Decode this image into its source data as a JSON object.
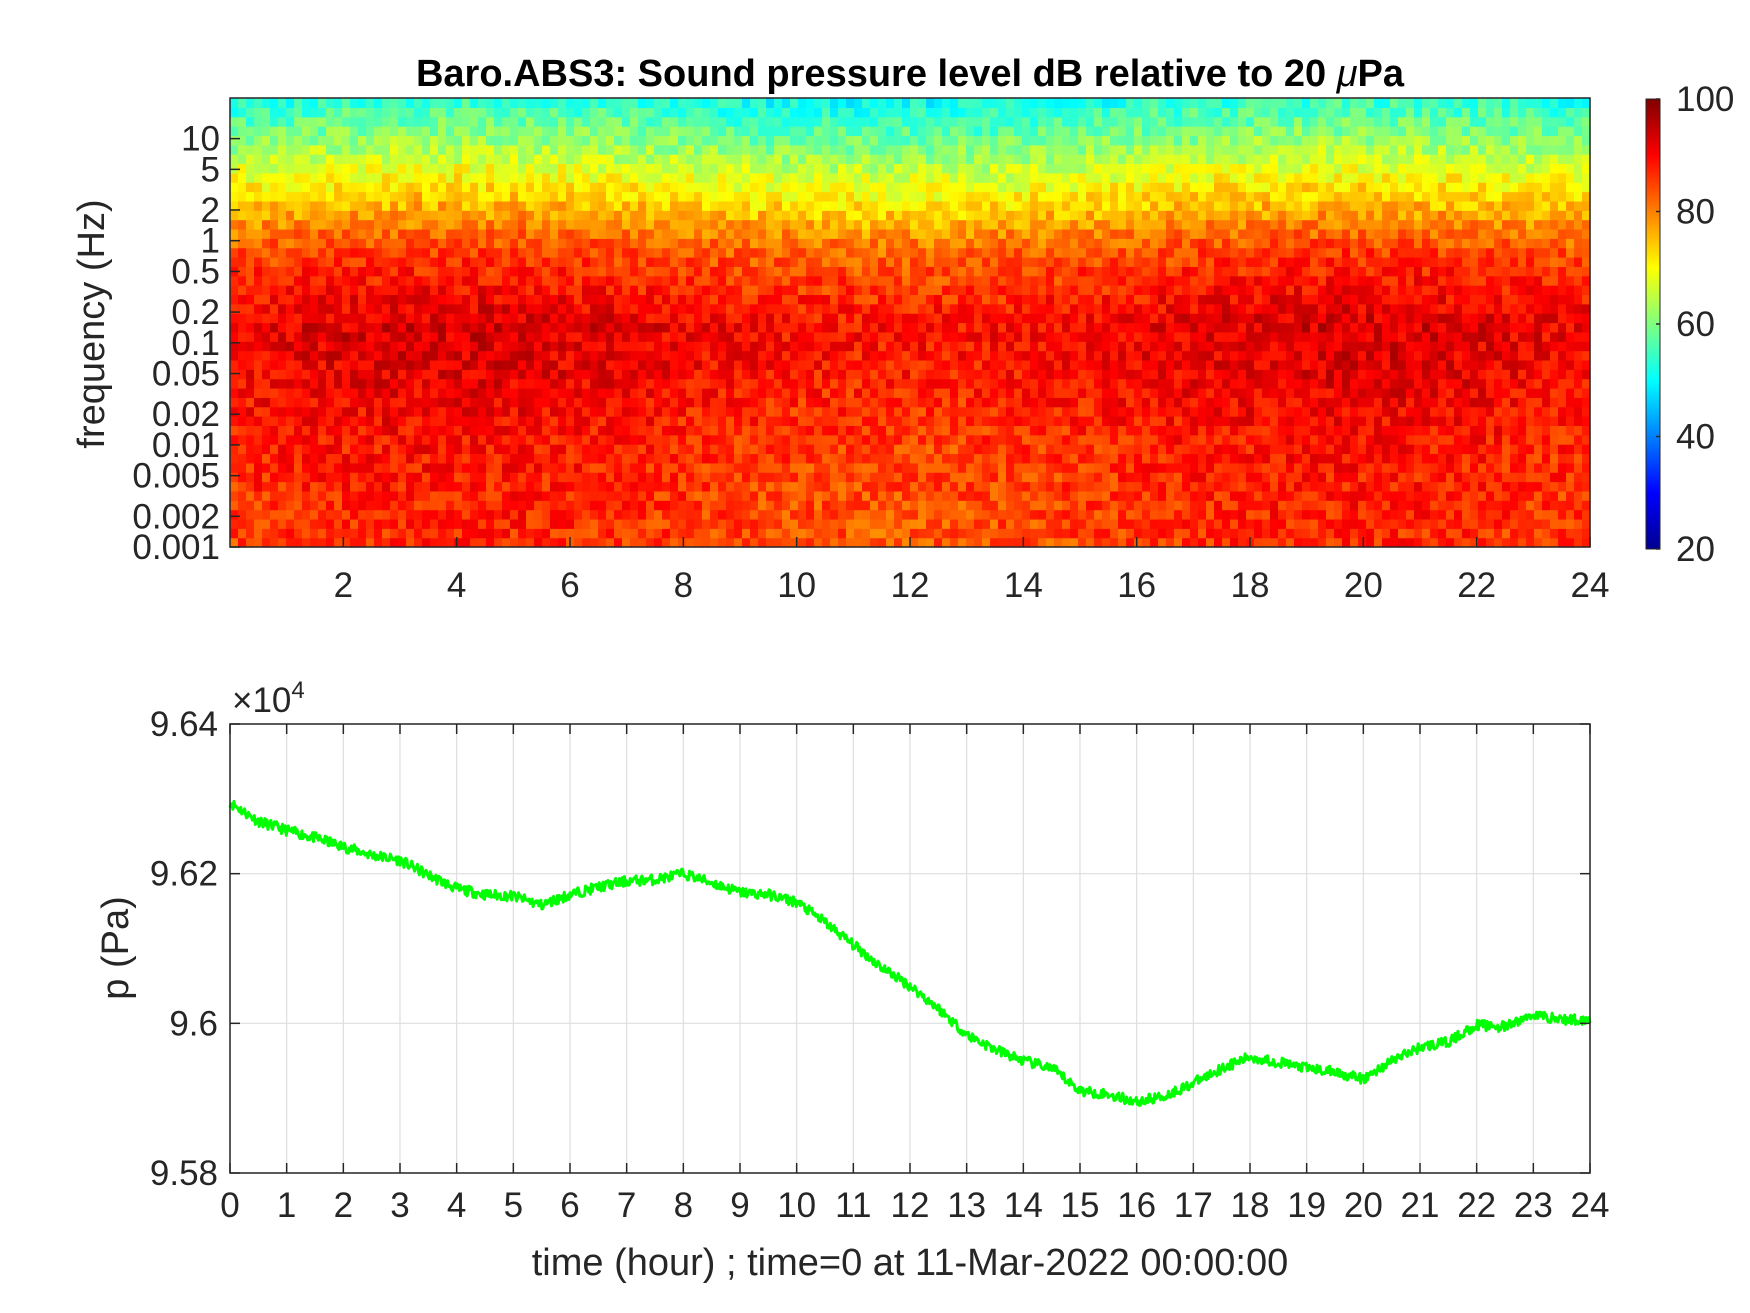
{
  "chart_data": [
    {
      "type": "heatmap",
      "title_main": "Baro.ABS3: Sound pressure level dB relative to 20 ",
      "title_mu": "μ",
      "title_end": "Pa",
      "ylabel": "frequency (Hz)",
      "xlabel": "",
      "x_range": [
        0,
        24
      ],
      "x_ticks": [
        2,
        4,
        6,
        8,
        10,
        12,
        14,
        16,
        18,
        20,
        22,
        24
      ],
      "x_tick_labels": [
        "2",
        "4",
        "6",
        "8",
        "10",
        "12",
        "14",
        "16",
        "18",
        "20",
        "22",
        "24"
      ],
      "y_scale": "log",
      "y_range": [
        0.001,
        25
      ],
      "y_ticks": [
        0.001,
        0.002,
        0.005,
        0.01,
        0.02,
        0.05,
        0.1,
        0.2,
        0.5,
        1,
        2,
        5,
        10
      ],
      "y_tick_labels": [
        "0.001",
        "0.002",
        "0.005",
        "0.01",
        "0.02",
        "0.05",
        "0.1",
        "0.2",
        "0.5",
        "1",
        "2",
        "5",
        "10"
      ],
      "colormap": "jet",
      "color_range": [
        20,
        100
      ],
      "colorbar_ticks": [
        20,
        40,
        60,
        80,
        100
      ],
      "colorbar_tick_labels": [
        "20",
        "40",
        "60",
        "80",
        "100"
      ],
      "level_profile_db": [
        {
          "f": 0.001,
          "db": 85
        },
        {
          "f": 0.003,
          "db": 86
        },
        {
          "f": 0.01,
          "db": 87
        },
        {
          "f": 0.05,
          "db": 90
        },
        {
          "f": 0.15,
          "db": 91
        },
        {
          "f": 0.5,
          "db": 86
        },
        {
          "f": 1,
          "db": 82
        },
        {
          "f": 2,
          "db": 75
        },
        {
          "f": 5,
          "db": 67
        },
        {
          "f": 10,
          "db": 60
        },
        {
          "f": 25,
          "db": 52
        }
      ]
    },
    {
      "type": "line",
      "title": "",
      "xlabel": "time (hour) ; time=0 at 11-Mar-2022 00:00:00",
      "ylabel": "p (Pa)",
      "xlim": [
        0,
        24
      ],
      "ylim": [
        95800,
        96400
      ],
      "x_ticks": [
        0,
        1,
        2,
        3,
        4,
        5,
        6,
        7,
        8,
        9,
        10,
        11,
        12,
        13,
        14,
        15,
        16,
        17,
        18,
        19,
        20,
        21,
        22,
        23,
        24
      ],
      "x_tick_labels": [
        "0",
        "1",
        "2",
        "3",
        "4",
        "5",
        "6",
        "7",
        "8",
        "9",
        "10",
        "11",
        "12",
        "13",
        "14",
        "15",
        "16",
        "17",
        "18",
        "19",
        "20",
        "21",
        "22",
        "23",
        "24"
      ],
      "y_ticks": [
        95800,
        96000,
        96200,
        96400
      ],
      "y_tick_labels": [
        "9.58",
        "9.6",
        "9.62",
        "9.64"
      ],
      "exponent_prefix": "×10",
      "exponent_power": "4",
      "grid": true,
      "series": [
        {
          "color": "#00ff00",
          "x": [
            0,
            0.5,
            1,
            1.5,
            2,
            2.5,
            3,
            3.5,
            4,
            4.5,
            5,
            5.5,
            6,
            6.5,
            7,
            7.5,
            8,
            8.5,
            9,
            9.5,
            10,
            10.5,
            11,
            11.5,
            12,
            12.5,
            13,
            13.5,
            14,
            14.5,
            15,
            15.5,
            16,
            16.5,
            17,
            17.5,
            18,
            18.5,
            19,
            19.5,
            20,
            20.5,
            21,
            21.5,
            22,
            22.5,
            23,
            23.5,
            24
          ],
          "y": [
            96295,
            96270,
            96258,
            96248,
            96236,
            96225,
            96218,
            96198,
            96180,
            96172,
            96170,
            96158,
            96172,
            96182,
            96190,
            96192,
            96200,
            96188,
            96175,
            96172,
            96162,
            96135,
            96105,
            96075,
            96050,
            96020,
            95985,
            95965,
            95950,
            95940,
            95910,
            95905,
            95895,
            95903,
            95920,
            95940,
            95955,
            95948,
            95940,
            95935,
            95925,
            95950,
            95968,
            95975,
            95998,
            95995,
            96012,
            96005,
            96005
          ]
        }
      ]
    }
  ]
}
